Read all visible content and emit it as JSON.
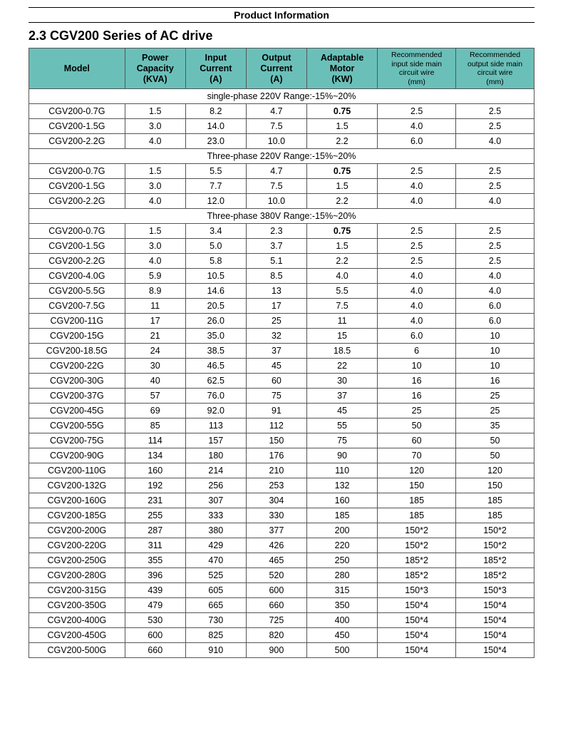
{
  "page_header": "Product Information",
  "section_title": "2.3 CGV200 Series of AC drive",
  "columns": [
    "Model",
    "Power\nCapacity\n(KVA)",
    "Input\nCurrent\n(A)",
    "Output\nCurrent\n(A)",
    "Adaptable\nMotor\n(KW)",
    "Recommended\ninput side main\ncircuit wire\n(mm)",
    "Recommended\noutput side main\ncircuit wire\n(mm)"
  ],
  "groups": [
    {
      "label": "single-phase  220V    Range:-15%~20%",
      "rows": [
        [
          "CGV200-0.7G",
          "1.5",
          "8.2",
          "4.7",
          "0.75",
          "2.5",
          "2.5"
        ],
        [
          "CGV200-1.5G",
          "3.0",
          "14.0",
          "7.5",
          "1.5",
          "4.0",
          "2.5"
        ],
        [
          "CGV200-2.2G",
          "4.0",
          "23.0",
          "10.0",
          "2.2",
          "6.0",
          "4.0"
        ]
      ],
      "bold_motor_idx": [
        0
      ]
    },
    {
      "label": "Three-phase  220V    Range:-15%~20%",
      "rows": [
        [
          "CGV200-0.7G",
          "1.5",
          "5.5",
          "4.7",
          "0.75",
          "2.5",
          "2.5"
        ],
        [
          "CGV200-1.5G",
          "3.0",
          "7.7",
          "7.5",
          "1.5",
          "4.0",
          "2.5"
        ],
        [
          "CGV200-2.2G",
          "4.0",
          "12.0",
          "10.0",
          "2.2",
          "4.0",
          "4.0"
        ]
      ],
      "bold_motor_idx": [
        0
      ]
    },
    {
      "label": "Three-phase 380V    Range:-15%~20%",
      "rows": [
        [
          "CGV200-0.7G",
          "1.5",
          "3.4",
          "2.3",
          "0.75",
          "2.5",
          "2.5"
        ],
        [
          "CGV200-1.5G",
          "3.0",
          "5.0",
          "3.7",
          "1.5",
          "2.5",
          "2.5"
        ],
        [
          "CGV200-2.2G",
          "4.0",
          "5.8",
          "5.1",
          "2.2",
          "2.5",
          "2.5"
        ],
        [
          "CGV200-4.0G",
          "5.9",
          "10.5",
          "8.5",
          "4.0",
          "4.0",
          "4.0"
        ],
        [
          "CGV200-5.5G",
          "8.9",
          "14.6",
          "13",
          "5.5",
          "4.0",
          "4.0"
        ],
        [
          "CGV200-7.5G",
          "11",
          "20.5",
          "17",
          "7.5",
          "4.0",
          "6.0"
        ],
        [
          "CGV200-11G",
          "17",
          "26.0",
          "25",
          "11",
          "4.0",
          "6.0"
        ],
        [
          "CGV200-15G",
          "21",
          "35.0",
          "32",
          "15",
          "6.0",
          "10"
        ],
        [
          "CGV200-18.5G",
          "24",
          "38.5",
          "37",
          "18.5",
          "6",
          "10"
        ],
        [
          "CGV200-22G",
          "30",
          "46.5",
          "45",
          "22",
          "10",
          "10"
        ],
        [
          "CGV200-30G",
          "40",
          "62.5",
          "60",
          "30",
          "16",
          "16"
        ],
        [
          "CGV200-37G",
          "57",
          "76.0",
          "75",
          "37",
          "16",
          "25"
        ],
        [
          "CGV200-45G",
          "69",
          "92.0",
          "91",
          "45",
          "25",
          "25"
        ],
        [
          "CGV200-55G",
          "85",
          "113",
          "112",
          "55",
          "50",
          "35"
        ],
        [
          "CGV200-75G",
          "114",
          "157",
          "150",
          "75",
          "60",
          "50"
        ],
        [
          "CGV200-90G",
          "134",
          "180",
          "176",
          "90",
          "70",
          "50"
        ],
        [
          "CGV200-110G",
          "160",
          "214",
          "210",
          "110",
          "120",
          "120"
        ],
        [
          "CGV200-132G",
          "192",
          "256",
          "253",
          "132",
          "150",
          "150"
        ],
        [
          "CGV200-160G",
          "231",
          "307",
          "304",
          "160",
          "185",
          "185"
        ],
        [
          "CGV200-185G",
          "255",
          "333",
          "330",
          "185",
          "185",
          "185"
        ],
        [
          "CGV200-200G",
          "287",
          "380",
          "377",
          "200",
          "150*2",
          "150*2"
        ],
        [
          "CGV200-220G",
          "311",
          "429",
          "426",
          "220",
          "150*2",
          "150*2"
        ],
        [
          "CGV200-250G",
          "355",
          "470",
          "465",
          "250",
          "185*2",
          "185*2"
        ],
        [
          "CGV200-280G",
          "396",
          "525",
          "520",
          "280",
          "185*2",
          "185*2"
        ],
        [
          "CGV200-315G",
          "439",
          "605",
          "600",
          "315",
          "150*3",
          "150*3"
        ],
        [
          "CGV200-350G",
          "479",
          "665",
          "660",
          "350",
          "150*4",
          "150*4"
        ],
        [
          "CGV200-400G",
          "530",
          "730",
          "725",
          "400",
          "150*4",
          "150*4"
        ],
        [
          "CGV200-450G",
          "600",
          "825",
          "820",
          "450",
          "150*4",
          "150*4"
        ],
        [
          "CGV200-500G",
          "660",
          "910",
          "900",
          "500",
          "150*4",
          "150*4"
        ]
      ],
      "bold_motor_idx": [
        0
      ]
    }
  ]
}
